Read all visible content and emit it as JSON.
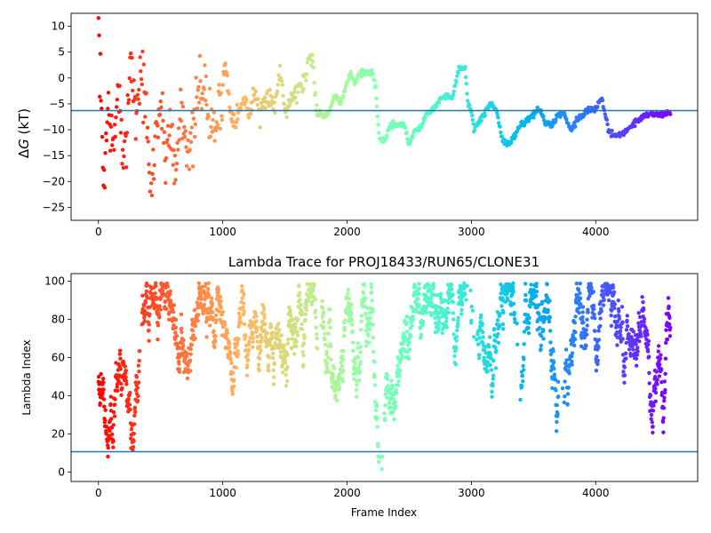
{
  "chart_data": [
    {
      "type": "scatter",
      "title": "",
      "xlabel": "",
      "ylabel": "ΔG (kT)",
      "ylabel_parts": [
        "Δ",
        "G",
        " (kT)"
      ],
      "xlim": [
        -220,
        4820
      ],
      "ylim": [
        -27.5,
        12.5
      ],
      "xticks": [
        0,
        1000,
        2000,
        3000,
        4000
      ],
      "yticks": [
        10,
        5,
        0,
        -5,
        -10,
        -15,
        -20,
        -25
      ],
      "hline": -6.3,
      "colormap": "rainbow (reversed: red at frame 0 → violet at final frame)",
      "frames": 4600,
      "trace_keypoints": {
        "x": [
          0,
          40,
          80,
          120,
          160,
          200,
          260,
          300,
          340,
          380,
          420,
          460,
          500,
          540,
          580,
          620,
          660,
          700,
          740,
          780,
          820,
          860,
          900,
          940,
          980,
          1020,
          1060,
          1100,
          1140,
          1180,
          1220,
          1260,
          1300,
          1340,
          1380,
          1420,
          1460,
          1500,
          1540,
          1580,
          1620,
          1660,
          1700,
          1720,
          1740,
          1760,
          1780,
          1800,
          1850,
          1900,
          1950,
          2000,
          2030,
          2060,
          2100,
          2150,
          2200,
          2230,
          2260,
          2300,
          2350,
          2380,
          2420,
          2460,
          2500,
          2540,
          2580,
          2600,
          2640,
          2680,
          2700,
          2750,
          2800,
          2850,
          2900,
          2950,
          2970,
          3000,
          3020,
          3050,
          3080,
          3100,
          3150,
          3200,
          3250,
          3300,
          3350,
          3400,
          3450,
          3500,
          3550,
          3600,
          3650,
          3700,
          3750,
          3800,
          3850,
          3900,
          3950,
          4000,
          4050,
          4100,
          4150,
          4200,
          4250,
          4300,
          4350,
          4400,
          4450,
          4500,
          4550,
          4600
        ],
        "y": [
          10,
          -20,
          -5,
          -15,
          0,
          -20,
          5,
          -8,
          2,
          -5,
          -25,
          -10,
          -5,
          -15,
          -8,
          -20,
          -5,
          -10,
          -15,
          -8,
          0,
          -3,
          -9,
          -9.5,
          -5,
          3,
          -6,
          -8,
          -6,
          -4,
          -7,
          -2,
          -8,
          -5,
          -3,
          -6,
          2,
          -6,
          -4,
          -3,
          -2,
          0,
          4,
          5,
          -3,
          -6,
          -7,
          -7,
          -7,
          -3,
          -5,
          -1,
          1,
          -1,
          1,
          1,
          1,
          -2,
          -12,
          -12,
          -9,
          -9,
          -9,
          -9,
          -13,
          -10,
          -10,
          -9,
          -7,
          -6,
          -6,
          -4,
          -3.5,
          -3.5,
          2,
          2,
          -5,
          -6,
          -10,
          -9,
          -8,
          -7,
          -5,
          -6,
          -12,
          -13,
          -11,
          -9,
          -8,
          -7,
          -6,
          -9,
          -9,
          -7,
          -7,
          -10,
          -8,
          -7,
          -6,
          -6,
          -4,
          -10,
          -11,
          -11,
          -10,
          -9,
          -8,
          -7,
          -7,
          -7,
          -7,
          -7
        ]
      }
    },
    {
      "type": "scatter",
      "title": "Lambda Trace for PROJ18433/RUN65/CLONE31",
      "xlabel": "Frame Index",
      "ylabel": "Lambda Index",
      "xlim": [
        -220,
        4820
      ],
      "ylim": [
        -5,
        104
      ],
      "xticks": [
        0,
        1000,
        2000,
        3000,
        4000
      ],
      "yticks": [
        0,
        20,
        40,
        60,
        80,
        100
      ],
      "hline": 10.6,
      "colormap": "rainbow (reversed: red at frame 0 → violet at final frame)",
      "frames": 4600,
      "lambda_range": [
        0,
        99
      ],
      "dense_bands": [
        [
          0,
          330
        ],
        [
          350,
          1760
        ],
        [
          1800,
          2250
        ],
        [
          2300,
          2950
        ],
        [
          3050,
          3350
        ],
        [
          3400,
          3700
        ],
        [
          3750,
          4600
        ]
      ]
    }
  ]
}
